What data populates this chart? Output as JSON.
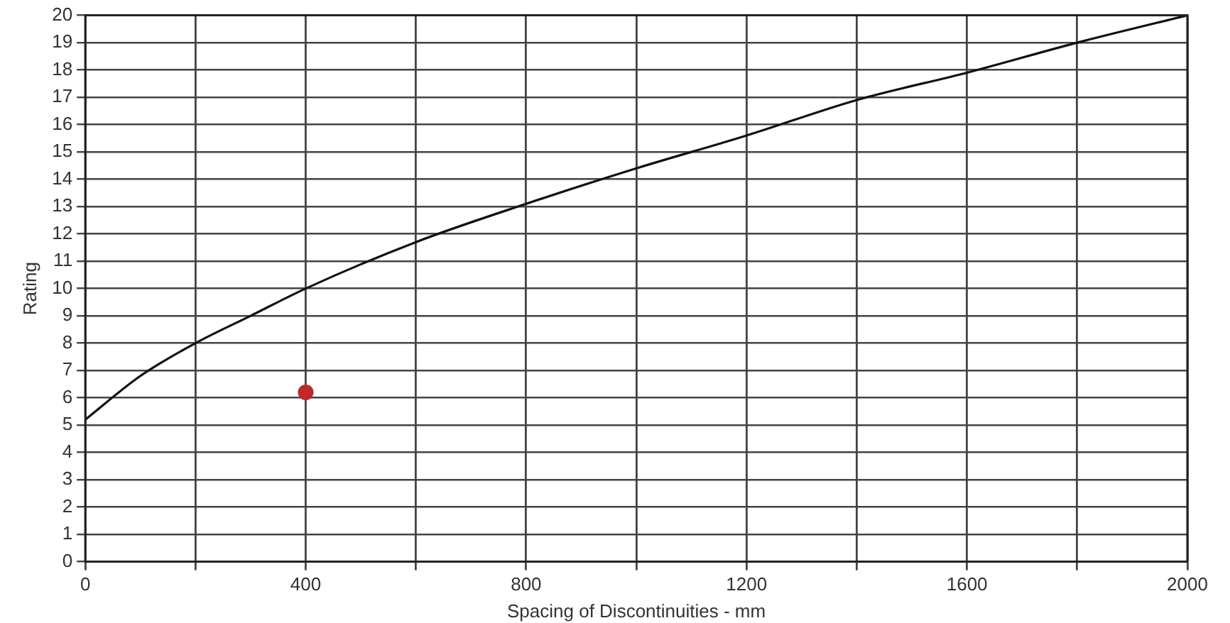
{
  "chart_data": {
    "type": "line",
    "xlabel": "Spacing of Discontinuities - mm",
    "ylabel": "Rating",
    "xlim": [
      0,
      2000
    ],
    "ylim": [
      0,
      20
    ],
    "xticks": [
      0,
      {
        "value": 200,
        "label": null
      },
      400,
      {
        "value": 600,
        "label": null
      },
      800,
      {
        "value": 1000,
        "label": null
      },
      1200,
      {
        "value": 1400,
        "label": null
      },
      1600,
      {
        "value": 1800,
        "label": null
      },
      2000
    ],
    "yticks": [
      0,
      1,
      2,
      3,
      4,
      5,
      6,
      7,
      8,
      9,
      10,
      11,
      12,
      13,
      14,
      15,
      16,
      17,
      18,
      19,
      20
    ],
    "grid": true,
    "legend": false,
    "series": [
      {
        "color": "#111111",
        "marker": "none",
        "line_style": "solid",
        "x": [
          0,
          100,
          200,
          300,
          400,
          600,
          800,
          1000,
          1200,
          1400,
          1600,
          1800,
          2000
        ],
        "values": [
          5.2,
          6.8,
          8,
          9,
          10,
          11.7,
          13.1,
          14.4,
          15.6,
          16.9,
          17.9,
          19,
          20
        ]
      },
      {
        "type": "scatter",
        "color": "#c0282a",
        "marker": "circle",
        "x": [
          400
        ],
        "values": [
          6.2
        ]
      }
    ]
  }
}
